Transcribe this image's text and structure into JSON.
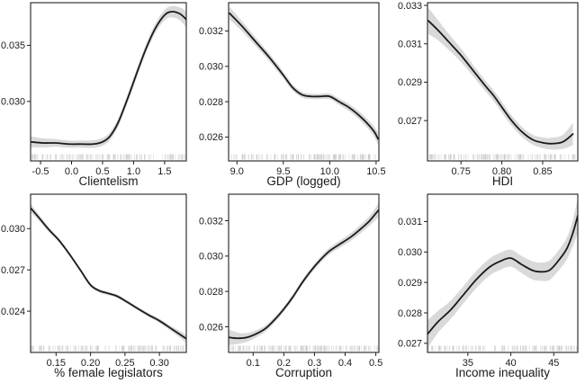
{
  "figure": {
    "description": "Grid of six nonparametric smooth effect plots with confidence bands and rug marks",
    "rows": 2,
    "cols": 3
  },
  "colors": {
    "line": "#1a1a1a",
    "band": "#d9d9d9",
    "rug": "#bdbdbd",
    "border": "#1f1f1f",
    "text": "#1a1a1a"
  },
  "chart_data": {
    "type": "line",
    "grid": false,
    "legend": false,
    "panels": [
      {
        "name": "clientelism",
        "xlabel": "Clientelism",
        "xlim": [
          -0.66,
          1.85
        ],
        "ylim": [
          0.0247,
          0.0388
        ],
        "xticks": [
          {
            "v": -0.5,
            "t": "-0.5"
          },
          {
            "v": 0.0,
            "t": "0.0"
          },
          {
            "v": 0.5,
            "t": "0.5"
          },
          {
            "v": 1.0,
            "t": "1.0"
          },
          {
            "v": 1.5,
            "t": "1.5"
          }
        ],
        "yticks": [
          {
            "v": 0.03,
            "t": "0.030"
          },
          {
            "v": 0.035,
            "t": "0.035"
          }
        ],
        "curve": {
          "x": [
            -0.66,
            -0.45,
            -0.25,
            -0.05,
            0.15,
            0.35,
            0.5,
            0.62,
            0.75,
            0.9,
            1.05,
            1.2,
            1.35,
            1.5,
            1.62,
            1.75,
            1.85
          ],
          "y": [
            0.0264,
            0.0263,
            0.0263,
            0.0262,
            0.0262,
            0.0262,
            0.0264,
            0.0269,
            0.0281,
            0.0302,
            0.0325,
            0.0347,
            0.0365,
            0.0377,
            0.038,
            0.0378,
            0.0373
          ],
          "hw": [
            0.0005,
            0.0004,
            0.00034,
            0.00032,
            0.00032,
            0.00034,
            0.00034,
            0.00034,
            0.00036,
            0.00038,
            0.0004,
            0.0004,
            0.00042,
            0.00046,
            0.0005,
            0.00058,
            0.00072
          ]
        },
        "rug": {
          "count": 110
        }
      },
      {
        "name": "gdp-logged",
        "xlabel": "GDP (logged)",
        "xlim": [
          8.91,
          10.53
        ],
        "ylim": [
          0.02465,
          0.0336
        ],
        "xticks": [
          {
            "v": 9.0,
            "t": "9.0"
          },
          {
            "v": 9.5,
            "t": "9.5"
          },
          {
            "v": 10.0,
            "t": "10.0"
          },
          {
            "v": 10.5,
            "t": "10.5"
          }
        ],
        "yticks": [
          {
            "v": 0.026,
            "t": "0.026"
          },
          {
            "v": 0.028,
            "t": "0.028"
          },
          {
            "v": 0.03,
            "t": "0.030"
          },
          {
            "v": 0.032,
            "t": "0.032"
          }
        ],
        "curve": {
          "x": [
            8.92,
            9.05,
            9.2,
            9.35,
            9.5,
            9.6,
            9.7,
            9.8,
            9.9,
            10.0,
            10.1,
            10.2,
            10.3,
            10.4,
            10.48,
            10.52
          ],
          "y": [
            0.033,
            0.0323,
            0.0314,
            0.0305,
            0.0295,
            0.0288,
            0.0284,
            0.0283,
            0.0283,
            0.0283,
            0.028,
            0.0277,
            0.0273,
            0.0268,
            0.0263,
            0.0259
          ],
          "hw": [
            0.00036,
            0.00028,
            0.00024,
            0.00022,
            0.0002,
            0.00018,
            0.00016,
            0.00015,
            0.00015,
            0.00016,
            0.00018,
            0.0002,
            0.00022,
            0.00025,
            0.00029,
            0.00035
          ]
        },
        "rug": {
          "count": 120
        }
      },
      {
        "name": "hdi",
        "xlabel": "HDI",
        "xlim": [
          0.709,
          0.893
        ],
        "ylim": [
          0.0249,
          0.03314
        ],
        "xticks": [
          {
            "v": 0.75,
            "t": "0.75"
          },
          {
            "v": 0.8,
            "t": "0.80"
          },
          {
            "v": 0.85,
            "t": "0.85"
          }
        ],
        "yticks": [
          {
            "v": 0.027,
            "t": "0.027"
          },
          {
            "v": 0.029,
            "t": "0.029"
          },
          {
            "v": 0.031,
            "t": "0.031"
          },
          {
            "v": 0.033,
            "t": "0.033"
          }
        ],
        "curve": {
          "x": [
            0.71,
            0.722,
            0.735,
            0.75,
            0.765,
            0.78,
            0.79,
            0.8,
            0.812,
            0.825,
            0.838,
            0.85,
            0.862,
            0.875,
            0.887
          ],
          "y": [
            0.0322,
            0.0317,
            0.0311,
            0.0304,
            0.0296,
            0.0288,
            0.0283,
            0.0277,
            0.027,
            0.0264,
            0.026,
            0.02585,
            0.0258,
            0.0259,
            0.0263
          ],
          "hw": [
            0.00068,
            0.00052,
            0.00042,
            0.00035,
            0.0003,
            0.00028,
            0.00028,
            0.00028,
            0.00027,
            0.00026,
            0.00026,
            0.00028,
            0.00031,
            0.00037,
            0.00058
          ]
        },
        "rug": {
          "count": 120
        }
      },
      {
        "name": "female-legislators",
        "xlabel": "% female legislators",
        "xlim": [
          0.113,
          0.339
        ],
        "ylim": [
          0.021,
          0.0325
        ],
        "xticks": [
          {
            "v": 0.15,
            "t": "0.15"
          },
          {
            "v": 0.2,
            "t": "0.20"
          },
          {
            "v": 0.25,
            "t": "0.25"
          },
          {
            "v": 0.3,
            "t": "0.30"
          }
        ],
        "yticks": [
          {
            "v": 0.024,
            "t": "0.024"
          },
          {
            "v": 0.027,
            "t": "0.027"
          },
          {
            "v": 0.03,
            "t": "0.030"
          }
        ],
        "curve": {
          "x": [
            0.113,
            0.125,
            0.14,
            0.155,
            0.17,
            0.185,
            0.2,
            0.212,
            0.225,
            0.238,
            0.252,
            0.268,
            0.285,
            0.3,
            0.318,
            0.339
          ],
          "y": [
            0.0315,
            0.0308,
            0.0299,
            0.0291,
            0.0281,
            0.027,
            0.0259,
            0.0255,
            0.0253,
            0.0251,
            0.0247,
            0.0242,
            0.0237,
            0.0233,
            0.0227,
            0.022
          ],
          "hw": [
            0.00032,
            0.00022,
            0.00018,
            0.00015,
            0.00013,
            0.00013,
            0.00013,
            0.00013,
            0.00013,
            0.00013,
            0.00013,
            0.00013,
            0.00014,
            0.00015,
            0.00019,
            0.0003
          ]
        },
        "rug": {
          "count": 120
        }
      },
      {
        "name": "corruption",
        "xlabel": "Corruption",
        "xlim": [
          0.02,
          0.51
        ],
        "ylim": [
          0.02455,
          0.0335
        ],
        "xticks": [
          {
            "v": 0.1,
            "t": "0.1"
          },
          {
            "v": 0.2,
            "t": "0.2"
          },
          {
            "v": 0.3,
            "t": "0.3"
          },
          {
            "v": 0.4,
            "t": "0.4"
          },
          {
            "v": 0.5,
            "t": "0.5"
          }
        ],
        "yticks": [
          {
            "v": 0.026,
            "t": "0.026"
          },
          {
            "v": 0.028,
            "t": "0.028"
          },
          {
            "v": 0.03,
            "t": "0.030"
          },
          {
            "v": 0.032,
            "t": "0.032"
          }
        ],
        "curve": {
          "x": [
            0.021,
            0.05,
            0.08,
            0.11,
            0.14,
            0.17,
            0.2,
            0.23,
            0.26,
            0.29,
            0.32,
            0.35,
            0.385,
            0.42,
            0.455,
            0.48,
            0.509
          ],
          "y": [
            0.0254,
            0.02535,
            0.0254,
            0.0256,
            0.0259,
            0.0264,
            0.027,
            0.0277,
            0.0285,
            0.0292,
            0.0298,
            0.0303,
            0.0307,
            0.0311,
            0.0316,
            0.032,
            0.0326
          ],
          "hw": [
            0.00044,
            0.00032,
            0.00025,
            0.0002,
            0.00018,
            0.00016,
            0.00015,
            0.00015,
            0.00015,
            0.00016,
            0.00017,
            0.00018,
            0.0002,
            0.00022,
            0.00025,
            0.00028,
            0.0004
          ]
        },
        "rug": {
          "count": 130
        }
      },
      {
        "name": "income-inequality",
        "xlabel": "Income inequality",
        "xlim": [
          30.3,
          47.8
        ],
        "ylim": [
          0.0267,
          0.0319
        ],
        "xticks": [
          {
            "v": 35,
            "t": "35"
          },
          {
            "v": 40,
            "t": "40"
          },
          {
            "v": 45,
            "t": "45"
          }
        ],
        "yticks": [
          {
            "v": 0.027,
            "t": "0.027"
          },
          {
            "v": 0.028,
            "t": "0.028"
          },
          {
            "v": 0.029,
            "t": "0.029"
          },
          {
            "v": 0.03,
            "t": "0.030"
          },
          {
            "v": 0.031,
            "t": "0.031"
          }
        ],
        "curve": {
          "x": [
            30.3,
            31.5,
            33.0,
            34.5,
            36.0,
            37.5,
            38.8,
            40.0,
            41.2,
            42.5,
            43.5,
            44.5,
            45.5,
            46.5,
            47.2,
            47.8
          ],
          "y": [
            0.0273,
            0.0277,
            0.0281,
            0.0286,
            0.0291,
            0.0295,
            0.0297,
            0.0298,
            0.0296,
            0.0294,
            0.02935,
            0.0294,
            0.0297,
            0.0301,
            0.0306,
            0.0312
          ],
          "hw": [
            0.00046,
            0.00036,
            0.0003,
            0.00028,
            0.00028,
            0.00028,
            0.00028,
            0.00028,
            0.00028,
            0.0003,
            0.0003,
            0.00032,
            0.00033,
            0.00036,
            0.00042,
            0.00058
          ]
        },
        "rug": {
          "count": 115
        }
      }
    ]
  }
}
